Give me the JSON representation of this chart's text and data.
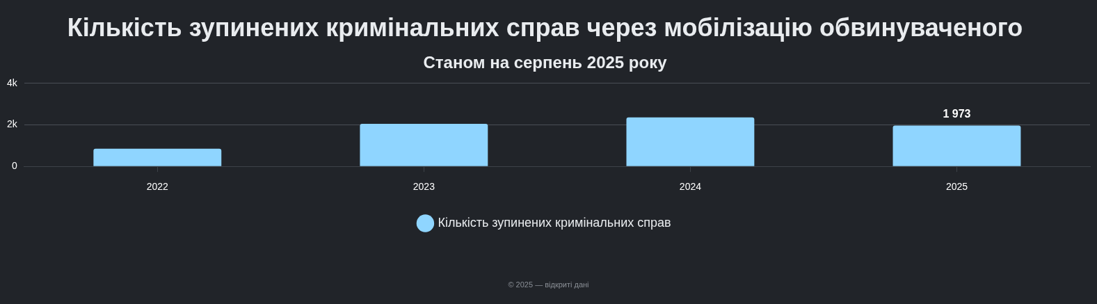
{
  "chart_data": {
    "type": "bar",
    "title": "Кількість зупинених кримінальних справ через мобілізацію обвинуваченого",
    "subtitle": "Станом на серпень 2025 року",
    "categories": [
      "2022",
      "2023",
      "2024",
      "2025"
    ],
    "series": [
      {
        "name": "Кількість зупинених кримінальних справ",
        "color": "#8fd5ff",
        "values": [
          850,
          2050,
          2360,
          1973
        ],
        "value_labels": [
          null,
          null,
          null,
          "1 973"
        ]
      }
    ],
    "ylim": [
      0,
      4000
    ],
    "yticks": [
      0,
      {
        "value": 2000,
        "label": "2k"
      },
      {
        "value": 4000,
        "label": "4k"
      }
    ],
    "grid": "y",
    "legend": "bottom",
    "annotations": [
      "© 2025 — відкриті дані"
    ]
  }
}
